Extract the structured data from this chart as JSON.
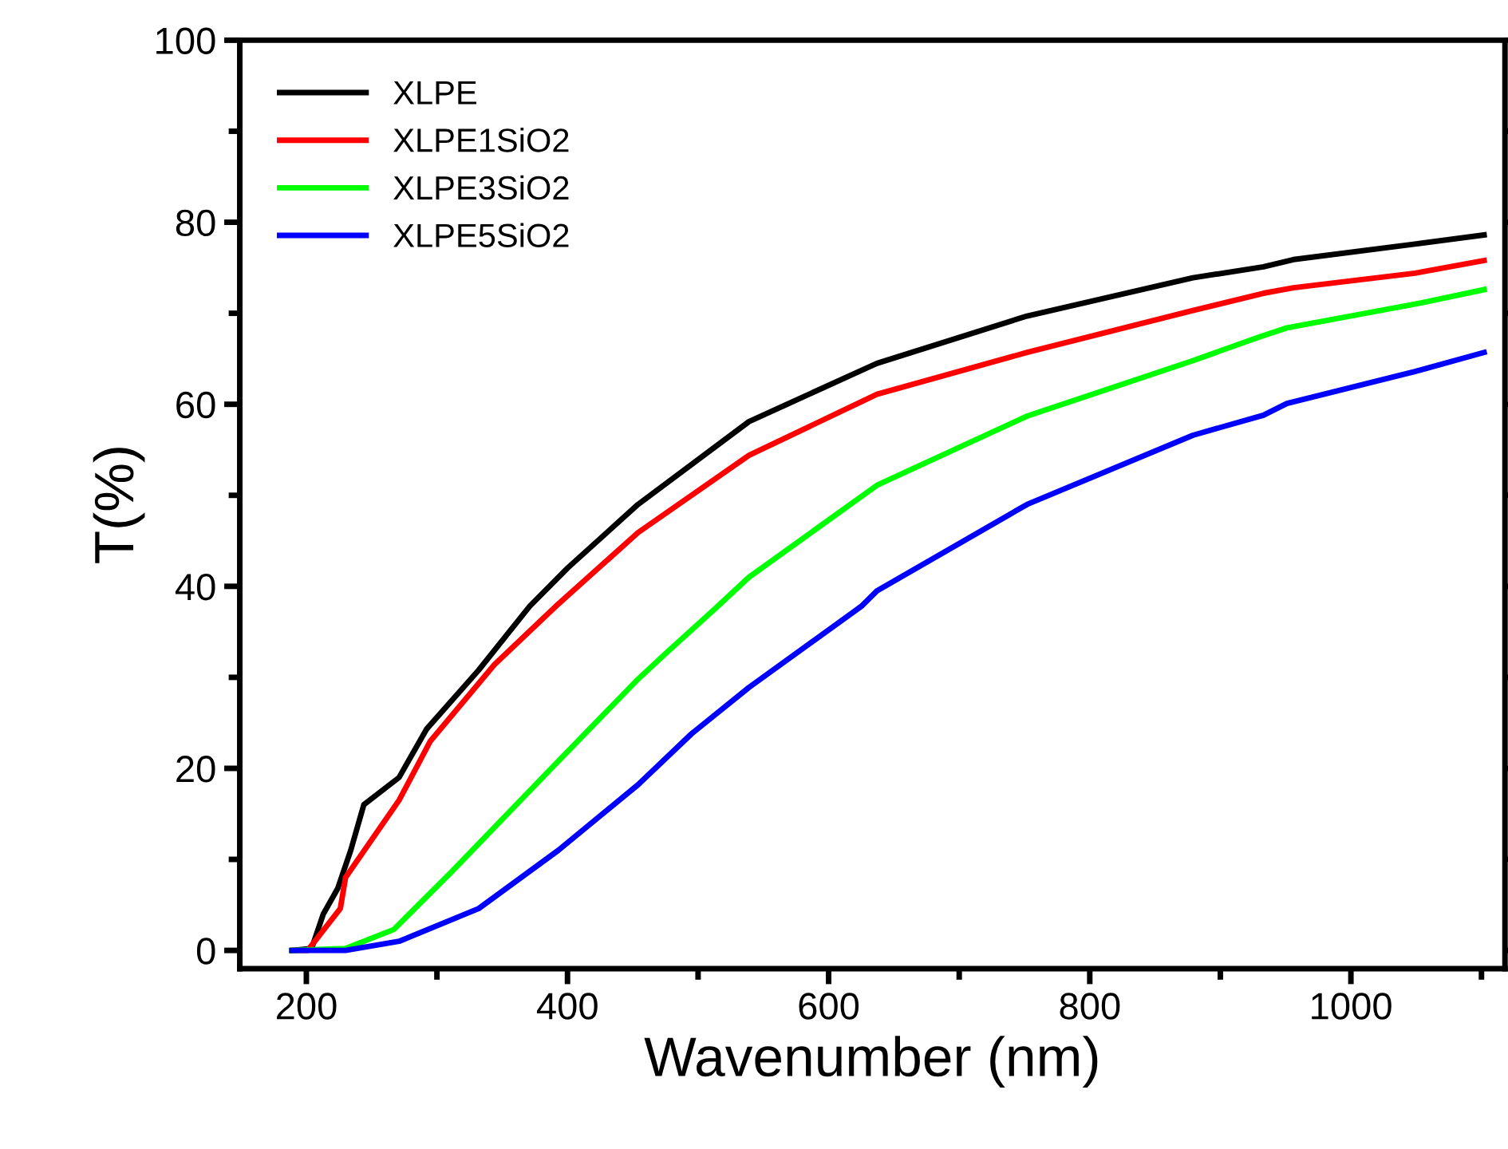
{
  "chart_data": {
    "type": "line",
    "xlabel": "Wavenumber (nm)",
    "ylabel": "T(%)",
    "xlim": [
      149,
      1118
    ],
    "ylim": [
      -2,
      100
    ],
    "xticks": [
      200,
      {
        "value": 300,
        "label": null
      },
      400,
      {
        "value": 500,
        "label": null
      },
      600,
      {
        "value": 700,
        "label": null
      },
      800,
      {
        "value": 900,
        "label": null
      },
      1000,
      {
        "value": 1100,
        "label": null
      }
    ],
    "yticks": [
      0,
      {
        "value": 10,
        "label": null
      },
      20,
      {
        "value": 30,
        "label": null
      },
      40,
      {
        "value": 50,
        "label": null
      },
      60,
      {
        "value": 70,
        "label": null
      },
      80,
      {
        "value": 90,
        "label": null
      },
      100
    ],
    "grid": false,
    "legend": "top left",
    "marker": "none",
    "line_style": "solid",
    "series": [
      {
        "name": "XLPE",
        "color": "#000000",
        "x": [
          189,
          204,
          213,
          224,
          234,
          244,
          271,
          292,
          332,
          371,
          400,
          454,
          539,
          637,
          752,
          879,
          933,
          956,
          1049,
          1102
        ],
        "values": [
          0,
          0.2,
          4,
          6.8,
          11,
          16,
          19,
          24.3,
          30.8,
          37.8,
          42,
          49,
          58.1,
          64.5,
          69.7,
          73.9,
          75.1,
          75.9,
          77.6,
          78.6
        ]
      },
      {
        "name": "XLPE1SiO2",
        "color": "#ff0000",
        "x": [
          189,
          201,
          226,
          230,
          271,
          295,
          344,
          391,
          454,
          539,
          637,
          752,
          879,
          933,
          956,
          1049,
          1102
        ],
        "values": [
          0,
          0,
          4.6,
          8,
          16.5,
          23,
          31.4,
          37.8,
          45.9,
          54.4,
          61.1,
          65.7,
          70.3,
          72.2,
          72.8,
          74.4,
          75.8
        ]
      },
      {
        "name": "XLPE3SiO2",
        "color": "#00ff00",
        "x": [
          189,
          230,
          267,
          311,
          393,
          454,
          475,
          515,
          539,
          637,
          752,
          879,
          930,
          951,
          1049,
          1102
        ],
        "values": [
          0,
          0.2,
          2.3,
          8.6,
          20.8,
          29.8,
          32.6,
          37.8,
          41,
          51.1,
          58.7,
          64.8,
          67.4,
          68.4,
          71,
          72.6
        ]
      },
      {
        "name": "XLPE5SiO2",
        "color": "#0000ff",
        "x": [
          189,
          230,
          271,
          332,
          393,
          454,
          495,
          539,
          625,
          637,
          752,
          879,
          933,
          951,
          1049,
          1102
        ],
        "values": [
          0,
          0,
          1,
          4.6,
          11,
          18.2,
          23.8,
          28.9,
          37.8,
          39.5,
          49,
          56.6,
          58.8,
          60.1,
          63.6,
          65.7
        ]
      }
    ]
  }
}
